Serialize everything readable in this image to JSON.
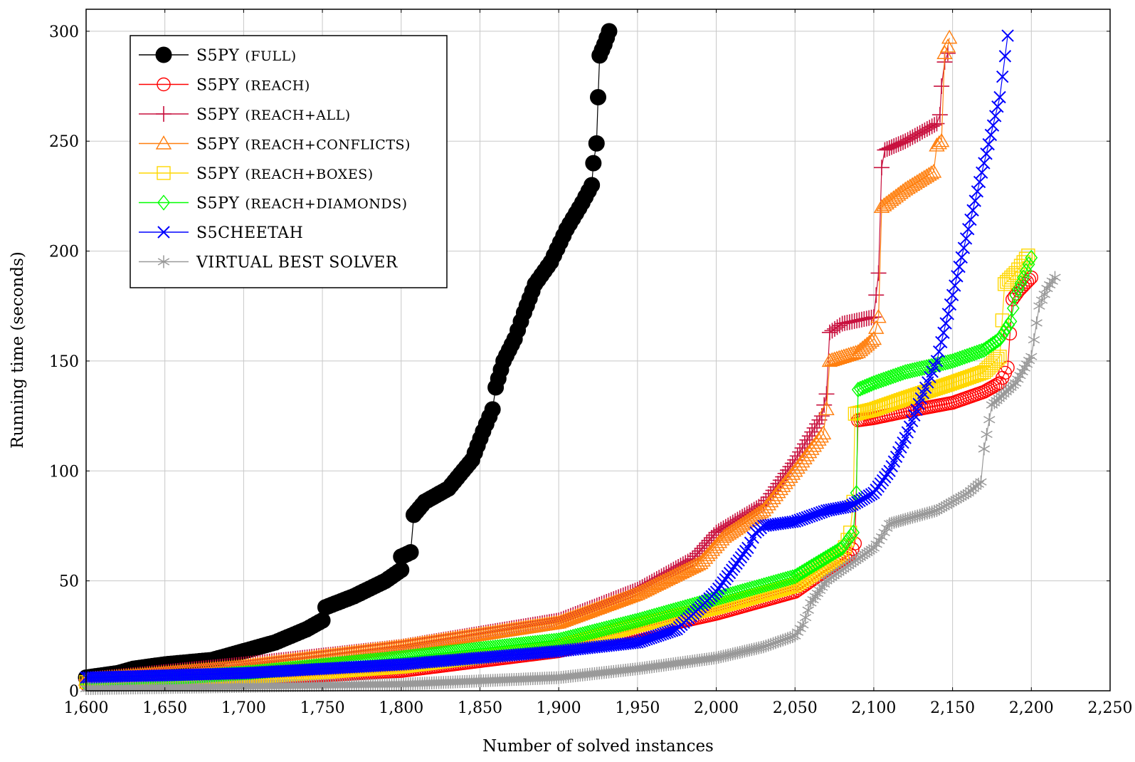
{
  "chart_data": {
    "type": "line",
    "title": "",
    "xlabel": "Number of solved instances",
    "ylabel": "Running time (seconds)",
    "xlim": [
      1600,
      2250
    ],
    "ylim": [
      0,
      310
    ],
    "xticks": [
      1600,
      1650,
      1700,
      1750,
      1800,
      1850,
      1900,
      1950,
      2000,
      2050,
      2100,
      2150,
      2200,
      2250
    ],
    "xtick_labels": [
      "1,600",
      "1,650",
      "1,700",
      "1,750",
      "1,800",
      "1,850",
      "1,900",
      "1,950",
      "2,000",
      "2,050",
      "2,100",
      "2,150",
      "2,200",
      "2,250"
    ],
    "yticks": [
      0,
      50,
      100,
      150,
      200,
      250,
      300
    ],
    "ytick_labels": [
      "0",
      "50",
      "100",
      "150",
      "200",
      "250",
      "300"
    ],
    "grid": true,
    "legend_position": "top-left",
    "series": [
      {
        "name": "S5PY (FULL)",
        "label_main": "S5PY",
        "label_sub": "(FULL)",
        "color": "#000000",
        "marker": "filled-circle",
        "points": [
          [
            1600,
            6
          ],
          [
            1620,
            8
          ],
          [
            1630,
            10
          ],
          [
            1650,
            12
          ],
          [
            1680,
            14
          ],
          [
            1700,
            18
          ],
          [
            1720,
            22
          ],
          [
            1740,
            28
          ],
          [
            1750,
            32
          ],
          [
            1752,
            38
          ],
          [
            1770,
            43
          ],
          [
            1790,
            50
          ],
          [
            1800,
            55
          ],
          [
            1800,
            61
          ],
          [
            1806,
            63
          ],
          [
            1808,
            80
          ],
          [
            1815,
            86
          ],
          [
            1830,
            92
          ],
          [
            1845,
            105
          ],
          [
            1852,
            118
          ],
          [
            1858,
            128
          ],
          [
            1860,
            138
          ],
          [
            1865,
            150
          ],
          [
            1872,
            160
          ],
          [
            1878,
            172
          ],
          [
            1885,
            185
          ],
          [
            1895,
            195
          ],
          [
            1905,
            210
          ],
          [
            1915,
            222
          ],
          [
            1921,
            230
          ],
          [
            1922,
            240
          ],
          [
            1924,
            249
          ],
          [
            1925,
            270
          ],
          [
            1926,
            289
          ],
          [
            1929,
            294
          ],
          [
            1932,
            300
          ]
        ]
      },
      {
        "name": "S5PY (REACH)",
        "label_main": "S5PY",
        "label_sub": "(REACH)",
        "color": "#ff0000",
        "marker": "open-circle",
        "points": [
          [
            1600,
            3
          ],
          [
            1700,
            5
          ],
          [
            1800,
            9
          ],
          [
            1900,
            18
          ],
          [
            1950,
            27
          ],
          [
            2000,
            35
          ],
          [
            2050,
            45
          ],
          [
            2070,
            55
          ],
          [
            2085,
            62
          ],
          [
            2088,
            67
          ],
          [
            2090,
            123
          ],
          [
            2100,
            124
          ],
          [
            2120,
            127
          ],
          [
            2150,
            131
          ],
          [
            2170,
            136
          ],
          [
            2180,
            140
          ],
          [
            2185,
            147
          ],
          [
            2188,
            178
          ],
          [
            2192,
            182
          ],
          [
            2196,
            185
          ],
          [
            2200,
            188
          ]
        ]
      },
      {
        "name": "S5PY (REACH+ALL)",
        "label_main": "S5PY",
        "label_sub": "(REACH+ALL)",
        "color": "#c8103e",
        "marker": "plus",
        "points": [
          [
            1600,
            5
          ],
          [
            1700,
            12
          ],
          [
            1800,
            20
          ],
          [
            1900,
            32
          ],
          [
            1950,
            46
          ],
          [
            1985,
            60
          ],
          [
            2000,
            72
          ],
          [
            2030,
            85
          ],
          [
            2050,
            105
          ],
          [
            2067,
            125
          ],
          [
            2070,
            135
          ],
          [
            2072,
            163
          ],
          [
            2080,
            167
          ],
          [
            2100,
            170
          ],
          [
            2103,
            190
          ],
          [
            2105,
            238
          ],
          [
            2107,
            246
          ],
          [
            2120,
            250
          ],
          [
            2140,
            258
          ],
          [
            2142,
            262
          ],
          [
            2143,
            275
          ],
          [
            2145,
            286
          ],
          [
            2147,
            290
          ]
        ]
      },
      {
        "name": "S5PY (REACH+CONFLICTS)",
        "label_main": "S5PY",
        "label_sub": "(REACH+CONFLICTS)",
        "color": "#ff7f0e",
        "marker": "triangle",
        "points": [
          [
            1600,
            5
          ],
          [
            1700,
            11
          ],
          [
            1800,
            20
          ],
          [
            1900,
            31
          ],
          [
            1950,
            44
          ],
          [
            1990,
            58
          ],
          [
            2005,
            70
          ],
          [
            2030,
            82
          ],
          [
            2050,
            100
          ],
          [
            2068,
            117
          ],
          [
            2070,
            128
          ],
          [
            2072,
            150
          ],
          [
            2090,
            154
          ],
          [
            2100,
            160
          ],
          [
            2103,
            170
          ],
          [
            2105,
            220
          ],
          [
            2120,
            228
          ],
          [
            2138,
            236
          ],
          [
            2140,
            248
          ],
          [
            2143,
            250
          ],
          [
            2145,
            290
          ],
          [
            2147,
            293
          ],
          [
            2148,
            297
          ]
        ]
      },
      {
        "name": "S5PY (REACH+BOXES)",
        "label_main": "S5PY",
        "label_sub": "(REACH+BOXES)",
        "color": "#ffd700",
        "marker": "square",
        "points": [
          [
            1600,
            4
          ],
          [
            1700,
            6
          ],
          [
            1800,
            11
          ],
          [
            1900,
            20
          ],
          [
            1950,
            30
          ],
          [
            2000,
            38
          ],
          [
            2050,
            48
          ],
          [
            2080,
            62
          ],
          [
            2085,
            72
          ],
          [
            2087,
            86
          ],
          [
            2088,
            126
          ],
          [
            2100,
            128
          ],
          [
            2120,
            133
          ],
          [
            2150,
            140
          ],
          [
            2170,
            145
          ],
          [
            2180,
            152
          ],
          [
            2183,
            185
          ],
          [
            2190,
            190
          ],
          [
            2195,
            195
          ],
          [
            2198,
            198
          ]
        ]
      },
      {
        "name": "S5PY (REACH+DIAMONDS)",
        "label_main": "S5PY",
        "label_sub": "(REACH+DIAMONDS)",
        "color": "#00ff00",
        "marker": "diamond",
        "points": [
          [
            1600,
            3
          ],
          [
            1700,
            8
          ],
          [
            1800,
            15
          ],
          [
            1900,
            23
          ],
          [
            1950,
            32
          ],
          [
            2000,
            42
          ],
          [
            2050,
            52
          ],
          [
            2080,
            65
          ],
          [
            2087,
            72
          ],
          [
            2089,
            90
          ],
          [
            2090,
            137
          ],
          [
            2100,
            140
          ],
          [
            2120,
            145
          ],
          [
            2150,
            150
          ],
          [
            2170,
            155
          ],
          [
            2180,
            160
          ],
          [
            2187,
            168
          ],
          [
            2190,
            180
          ],
          [
            2195,
            188
          ],
          [
            2200,
            197
          ]
        ]
      },
      {
        "name": "S5CHEETAH",
        "label_main": "S5CHEETAH",
        "label_sub": "",
        "color": "#0000ff",
        "marker": "x",
        "points": [
          [
            1600,
            6
          ],
          [
            1700,
            8
          ],
          [
            1800,
            12
          ],
          [
            1900,
            18
          ],
          [
            1950,
            22
          ],
          [
            1975,
            28
          ],
          [
            1990,
            38
          ],
          [
            2000,
            45
          ],
          [
            2010,
            55
          ],
          [
            2020,
            65
          ],
          [
            2025,
            72
          ],
          [
            2030,
            75
          ],
          [
            2050,
            77
          ],
          [
            2070,
            82
          ],
          [
            2085,
            84
          ],
          [
            2100,
            90
          ],
          [
            2110,
            100
          ],
          [
            2120,
            115
          ],
          [
            2130,
            133
          ],
          [
            2140,
            150
          ],
          [
            2150,
            180
          ],
          [
            2160,
            210
          ],
          [
            2170,
            240
          ],
          [
            2180,
            270
          ],
          [
            2185,
            298
          ]
        ]
      },
      {
        "name": "VIRTUAL BEST SOLVER",
        "label_main": "VIRTUAL BEST SOLVER",
        "label_sub": "",
        "color": "#999999",
        "marker": "asterisk",
        "points": [
          [
            1600,
            1
          ],
          [
            1700,
            2
          ],
          [
            1800,
            3
          ],
          [
            1900,
            6
          ],
          [
            1950,
            10
          ],
          [
            2000,
            15
          ],
          [
            2030,
            20
          ],
          [
            2050,
            25
          ],
          [
            2055,
            30
          ],
          [
            2060,
            40
          ],
          [
            2070,
            50
          ],
          [
            2090,
            60
          ],
          [
            2100,
            65
          ],
          [
            2105,
            70
          ],
          [
            2110,
            76
          ],
          [
            2120,
            78
          ],
          [
            2140,
            82
          ],
          [
            2160,
            90
          ],
          [
            2168,
            95
          ],
          [
            2170,
            110
          ],
          [
            2175,
            130
          ],
          [
            2190,
            140
          ],
          [
            2200,
            152
          ],
          [
            2205,
            175
          ],
          [
            2210,
            183
          ],
          [
            2215,
            188
          ]
        ]
      }
    ]
  }
}
